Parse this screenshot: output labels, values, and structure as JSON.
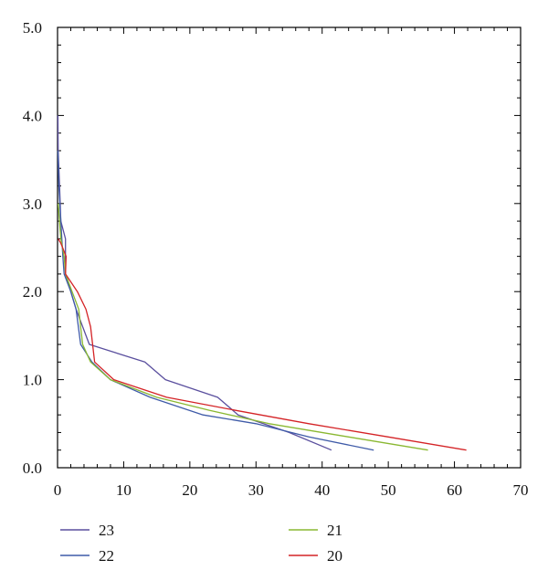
{
  "chart_data": {
    "type": "line",
    "title": "",
    "xlabel": "",
    "ylabel": "",
    "xlim": [
      0,
      70
    ],
    "ylim": [
      0,
      5.0
    ],
    "x_ticks": [
      0,
      10,
      20,
      30,
      40,
      50,
      60,
      70
    ],
    "x_tick_labels": [
      "0",
      "10",
      "20",
      "30",
      "40",
      "50",
      "60",
      "70"
    ],
    "y_ticks": [
      0,
      1,
      2,
      3,
      4,
      5
    ],
    "y_tick_labels": [
      "0.0",
      "1.0",
      "2.0",
      "3.0",
      "4.0",
      "5.0"
    ],
    "grid": false,
    "legend_position": "bottom",
    "series": [
      {
        "name": "23",
        "color": "#5a4f9e",
        "points": [
          [
            0.05,
            4.0
          ],
          [
            0.1,
            3.6
          ],
          [
            0.3,
            3.2
          ],
          [
            0.5,
            2.8
          ],
          [
            1.2,
            2.6
          ],
          [
            1.2,
            2.2
          ],
          [
            2.8,
            1.8
          ],
          [
            4.8,
            1.4
          ],
          [
            13.2,
            1.2
          ],
          [
            16.3,
            1.0
          ],
          [
            24.2,
            0.8
          ],
          [
            27.3,
            0.6
          ],
          [
            29.2,
            0.55
          ],
          [
            35.0,
            0.4
          ],
          [
            41.4,
            0.2
          ]
        ]
      },
      {
        "name": "22",
        "color": "#3f5ba8",
        "points": [
          [
            0.05,
            3.6
          ],
          [
            0.2,
            3.2
          ],
          [
            0.5,
            2.8
          ],
          [
            0.8,
            2.4
          ],
          [
            1.0,
            2.2
          ],
          [
            2.0,
            2.0
          ],
          [
            2.8,
            1.8
          ],
          [
            3.5,
            1.4
          ],
          [
            5.2,
            1.2
          ],
          [
            8.0,
            1.0
          ],
          [
            14.0,
            0.8
          ],
          [
            22.0,
            0.6
          ],
          [
            30.0,
            0.5
          ],
          [
            38.0,
            0.35
          ],
          [
            47.8,
            0.2
          ]
        ]
      },
      {
        "name": "21",
        "color": "#8ab832",
        "points": [
          [
            0.1,
            3.0
          ],
          [
            0.5,
            2.6
          ],
          [
            1.0,
            2.4
          ],
          [
            1.2,
            2.2
          ],
          [
            2.2,
            2.0
          ],
          [
            3.2,
            1.8
          ],
          [
            3.5,
            1.6
          ],
          [
            3.8,
            1.4
          ],
          [
            5.0,
            1.2
          ],
          [
            8.0,
            1.0
          ],
          [
            15.0,
            0.8
          ],
          [
            23.0,
            0.65
          ],
          [
            32.0,
            0.5
          ],
          [
            44.0,
            0.35
          ],
          [
            56.0,
            0.2
          ]
        ]
      },
      {
        "name": "20",
        "color": "#d42326",
        "points": [
          [
            0.1,
            2.6
          ],
          [
            0.5,
            2.55
          ],
          [
            1.3,
            2.4
          ],
          [
            1.2,
            2.2
          ],
          [
            3.0,
            2.0
          ],
          [
            4.3,
            1.8
          ],
          [
            5.0,
            1.6
          ],
          [
            5.3,
            1.4
          ],
          [
            5.6,
            1.2
          ],
          [
            8.5,
            1.0
          ],
          [
            16.5,
            0.8
          ],
          [
            27.0,
            0.65
          ],
          [
            38.0,
            0.5
          ],
          [
            50.0,
            0.35
          ],
          [
            61.8,
            0.2
          ]
        ]
      }
    ]
  }
}
